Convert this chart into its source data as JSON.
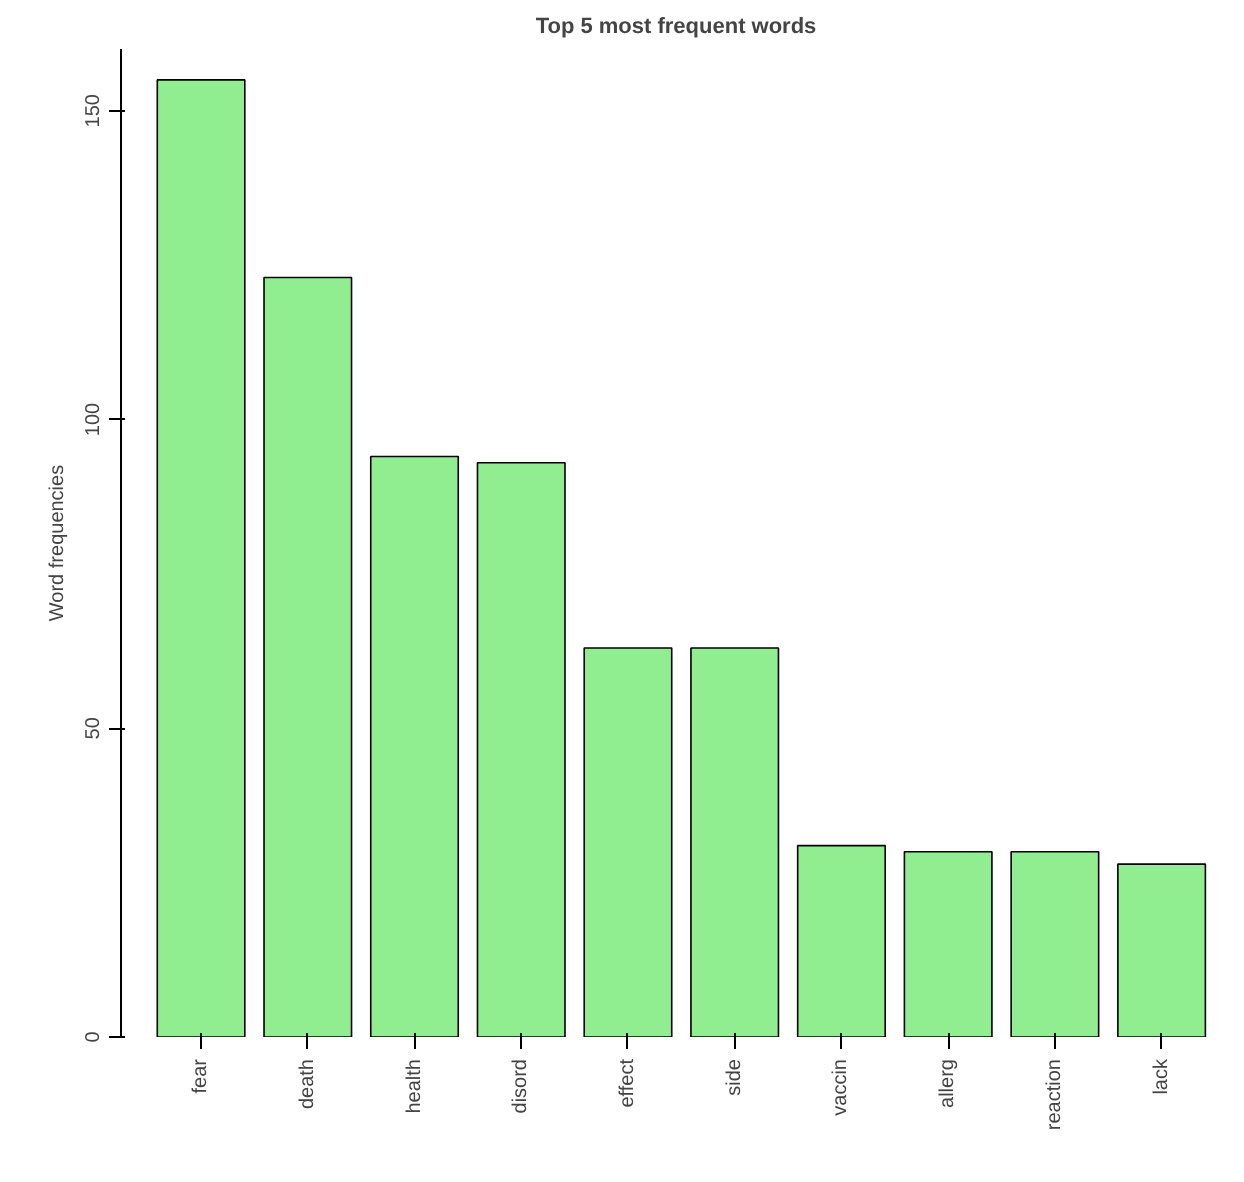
{
  "chart_data": {
    "type": "bar",
    "title": "Top 5 most frequent words",
    "ylabel": "Word frequencies",
    "categories": [
      "fear",
      "death",
      "health",
      "disord",
      "effect",
      "side",
      "vaccin",
      "allerg",
      "reaction",
      "lack"
    ],
    "values": [
      155,
      123,
      94,
      93,
      63,
      63,
      31,
      30,
      30,
      28
    ],
    "color": "#90ee90",
    "ylim": [
      0,
      160
    ],
    "yticks": [
      0,
      50,
      100,
      150
    ],
    "grid": false
  }
}
